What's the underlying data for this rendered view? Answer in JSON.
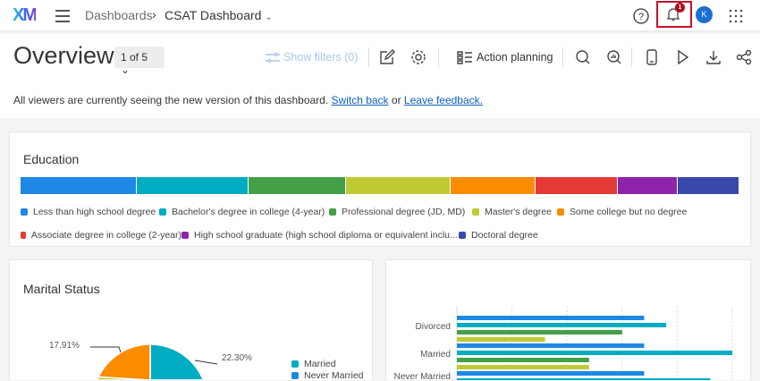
{
  "header": {
    "logo": "XM",
    "breadcrumb_root": "Dashboards",
    "breadcrumb_current": "CSAT Dashboard",
    "notification_count": "1",
    "avatar_initial": "K"
  },
  "toolbar": {
    "title": "Overview",
    "pager": "1 of 5",
    "show_filters": "Show filters (0)",
    "action_planning": "Action planning"
  },
  "banner": {
    "text": "All viewers are currently seeing the new version of this dashboard.",
    "switch_back": "Switch back",
    "or": "or",
    "leave_feedback": "Leave feedback."
  },
  "colors": {
    "blue": "#1e88e5",
    "teal": "#00acc1",
    "green": "#43a047",
    "lime": "#c0ca33",
    "orange": "#fb8c00",
    "red": "#e53935",
    "purple": "#8e24aa",
    "indigo": "#3949ab",
    "accent_highlight": "#c8102e"
  },
  "education": {
    "title": "Education",
    "segments": [
      {
        "label": "Less than high school degree",
        "value": 16.1,
        "color": "#1e88e5"
      },
      {
        "label": "Bachelor's degree in college (4-year)",
        "value": 15.5,
        "color": "#00acc1"
      },
      {
        "label": "Professional degree (JD, MD)",
        "value": 13.5,
        "color": "#43a047"
      },
      {
        "label": "Master's degree",
        "value": 14.5,
        "color": "#c0ca33"
      },
      {
        "label": "Some college but no degree",
        "value": 11.7,
        "color": "#fb8c00"
      },
      {
        "label": "Associate degree in college (2-year)",
        "value": 11.4,
        "color": "#e53935"
      },
      {
        "label": "High school graduate (high school diploma or equivalent inclu...",
        "value": 8.4,
        "color": "#8e24aa"
      },
      {
        "label": "Doctoral degree",
        "value": 8.5,
        "color": "#3949ab"
      }
    ]
  },
  "marital": {
    "title": "Marital Status",
    "labels": {
      "married_pct": "22.30%",
      "other_pct": "17.91%"
    },
    "legend": [
      "Married",
      "Never Married"
    ],
    "chart_data": {
      "type": "pie",
      "slices": [
        {
          "name": "Married",
          "value": 22.3,
          "color": "#00acc1"
        },
        {
          "name": "Never Married",
          "value": 55.0,
          "color": "#1e88e5"
        },
        {
          "value": 4.79,
          "color": "#c0ca33"
        },
        {
          "value": 17.91,
          "color": "#fb8c00"
        }
      ]
    }
  },
  "bar_chart": {
    "chart_data": {
      "type": "bar",
      "orientation": "horizontal",
      "grid": true,
      "xlim": [
        0,
        5
      ],
      "categories": [
        "Divorced",
        "Married",
        "Never Married"
      ],
      "series": [
        {
          "color": "#1e88e5",
          "values": [
            3.4,
            3.4,
            3.4
          ]
        },
        {
          "color": "#00acc1",
          "values": [
            3.8,
            5.0,
            4.6
          ]
        },
        {
          "color": "#43a047",
          "values": [
            3.0,
            2.4,
            null
          ]
        },
        {
          "color": "#c0ca33",
          "values": [
            1.6,
            2.4,
            null
          ]
        }
      ]
    }
  }
}
